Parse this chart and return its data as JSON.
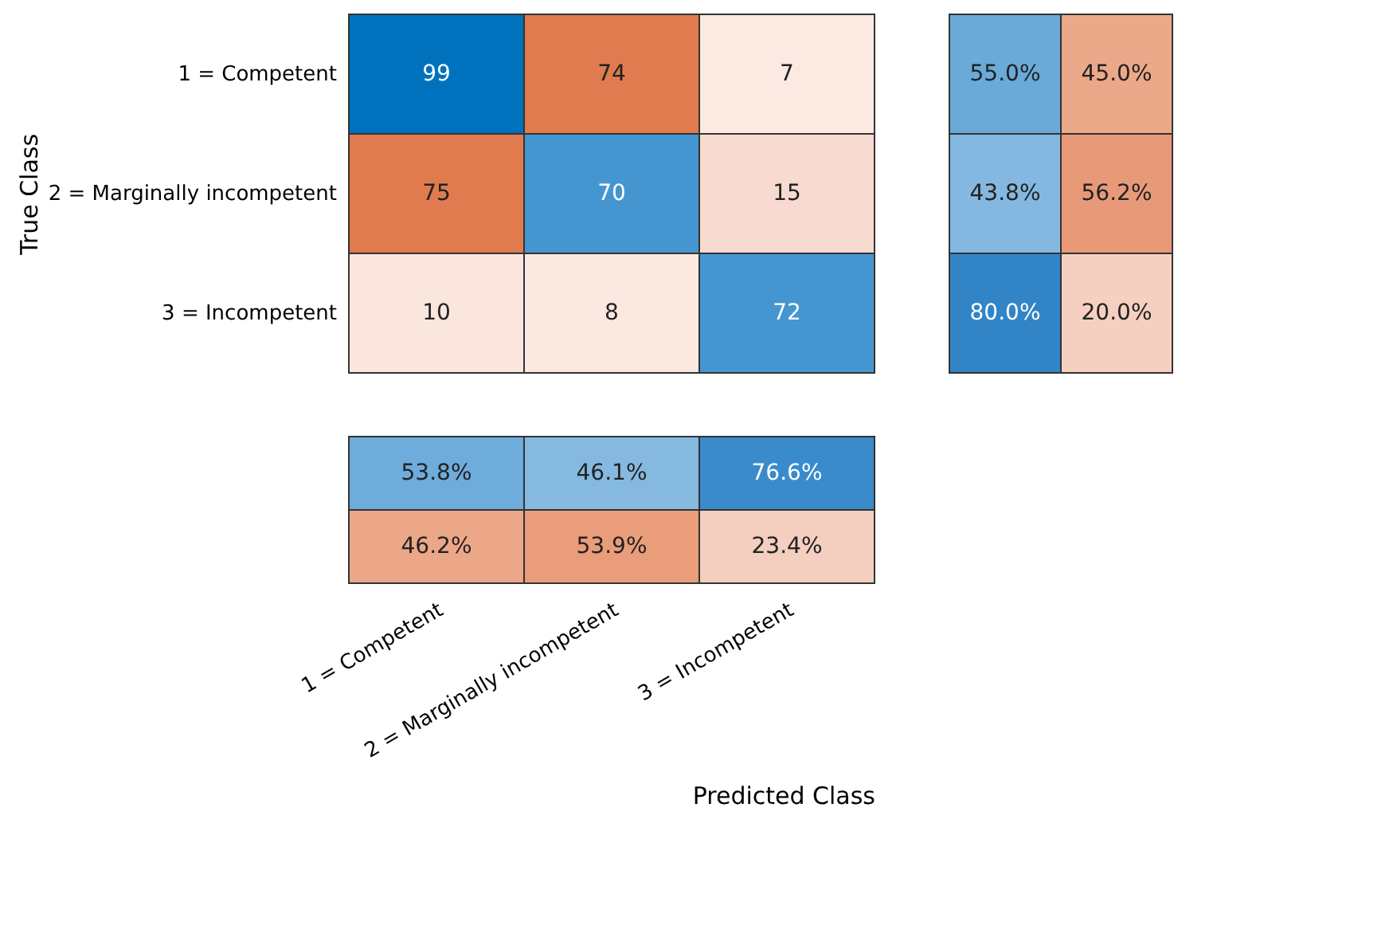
{
  "chart_data": [
    {
      "type": "heatmap",
      "ylabel": "True Class",
      "categories": [
        null,
        null,
        null
      ],
      "y_categories": [
        "1 = Competent",
        "2 = Marginally incompetent",
        "3 = Incompetent"
      ],
      "cells": [
        [
          99,
          74,
          7
        ],
        [
          75,
          70,
          15
        ],
        [
          10,
          8,
          72
        ]
      ],
      "colors": [
        [
          "#0072bd",
          "#e07b4f",
          "#fbe9e2"
        ],
        [
          "#e07b4f",
          "#4596d0",
          "#f7dbd0"
        ],
        [
          "#fbe6de",
          "#fbe8e1",
          "#4596d0"
        ]
      ],
      "data_labels": true,
      "tick_labels": "y"
    },
    {
      "type": "heatmap",
      "categories": [
        null,
        null
      ],
      "y_categories": [
        null,
        null,
        null
      ],
      "cells": [
        [
          55.0,
          45.0
        ],
        [
          43.8,
          56.2
        ],
        [
          80.0,
          20.0
        ]
      ],
      "cell_labels": [
        [
          "55.0%",
          "45.0%"
        ],
        [
          "43.8%",
          "56.2%"
        ],
        [
          "80.0%",
          "20.0%"
        ]
      ],
      "colors": [
        [
          "#6aaad9",
          "#eca98a"
        ],
        [
          "#84b8e0",
          "#e89a78"
        ],
        [
          "#3185c7",
          "#f5d0c1"
        ]
      ],
      "tick_labels": false
    },
    {
      "type": "heatmap",
      "xlabel": "Predicted Class",
      "categories": [
        "1 = Competent",
        "2 = Marginally incompetent",
        "3 = Incompetent"
      ],
      "y_categories": [
        null,
        null
      ],
      "cells": [
        [
          53.8,
          46.1,
          76.6
        ],
        [
          46.2,
          53.9,
          23.4
        ]
      ],
      "cell_labels": [
        [
          "53.8%",
          "46.1%",
          "76.6%"
        ],
        [
          "46.2%",
          "53.9%",
          "23.4%"
        ]
      ],
      "colors": [
        [
          "#6eacdb",
          "#85b9e0",
          "#3a8bcb"
        ],
        [
          "#eca788",
          "#e99d7b",
          "#f4cebf"
        ]
      ],
      "tick_labels": "x"
    }
  ]
}
